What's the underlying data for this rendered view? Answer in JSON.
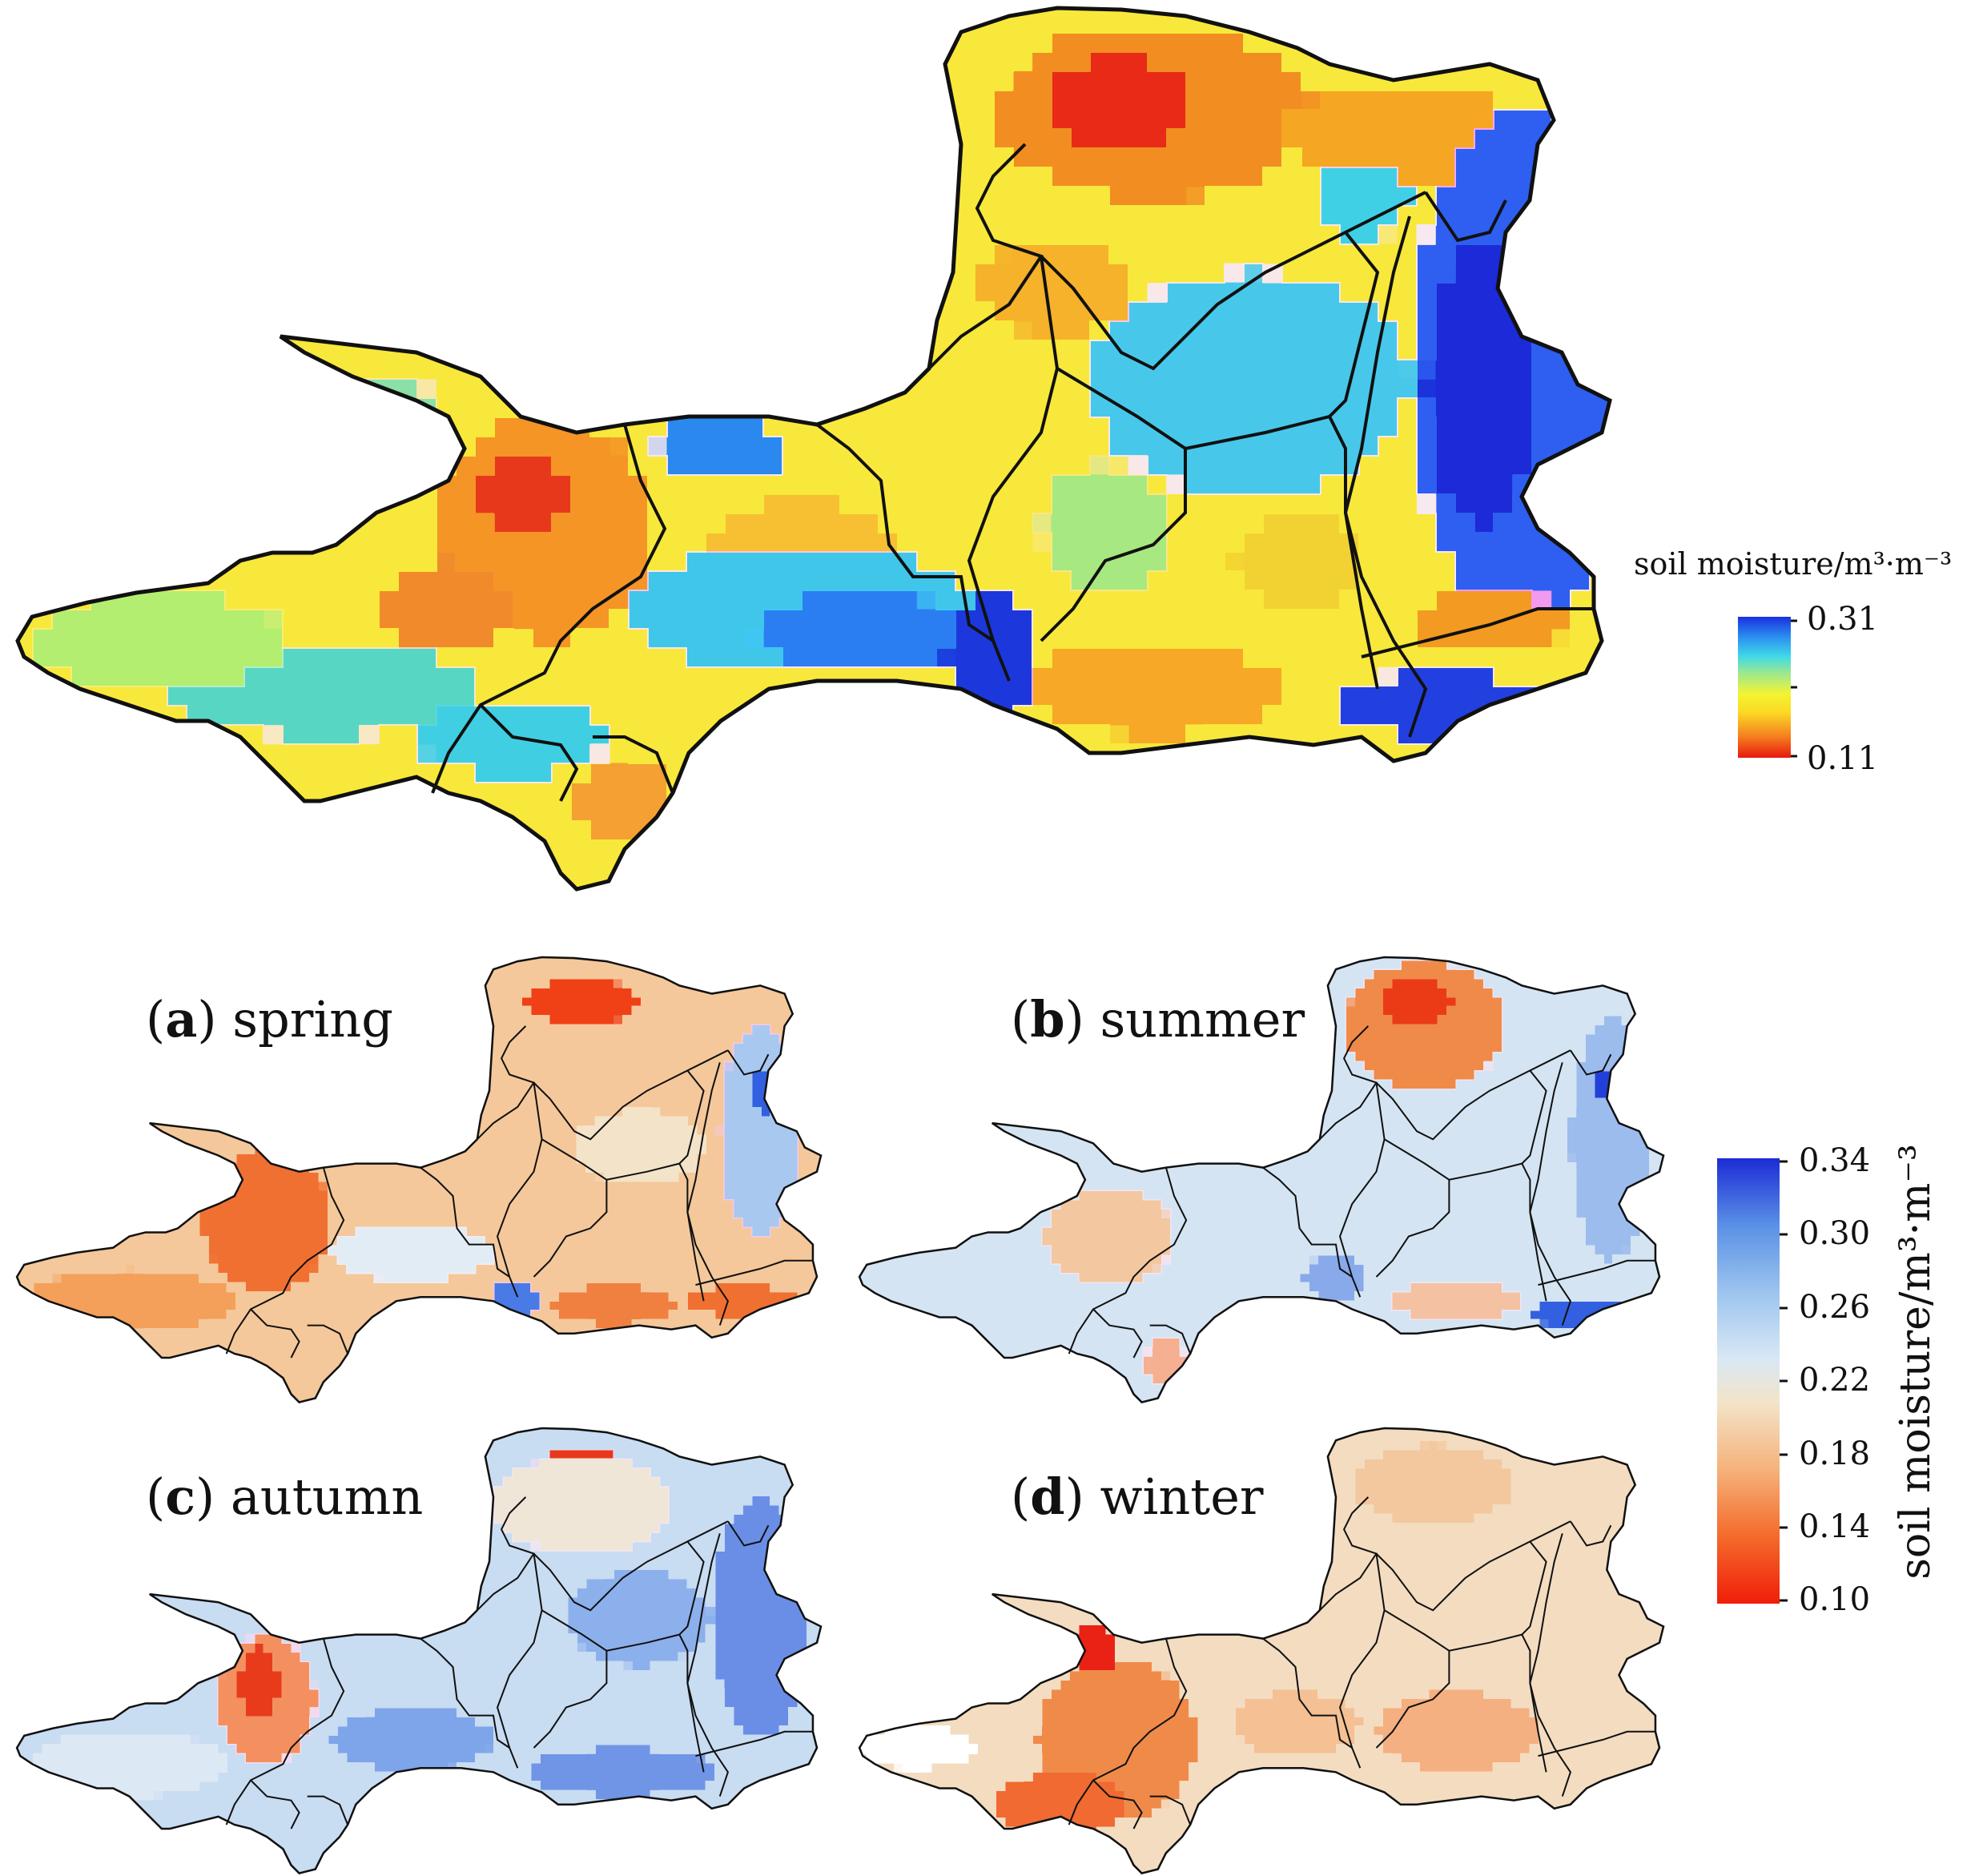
{
  "top_map": {
    "legend_title": "soil moisture/m³·m⁻³",
    "legend_max": "0.31",
    "legend_min": "0.11",
    "colormap": [
      "#e8190e",
      "#f57f20",
      "#fbd824",
      "#f4f432",
      "#9de88f",
      "#3fd9e8",
      "#2a8df0",
      "#1a2fe0"
    ]
  },
  "seasonal_maps": {
    "panels": [
      {
        "letter": "a",
        "season": "spring"
      },
      {
        "letter": "b",
        "season": "summer"
      },
      {
        "letter": "c",
        "season": "autumn"
      },
      {
        "letter": "d",
        "season": "winter"
      }
    ],
    "legend_title": "soil moisture/m³·m⁻³",
    "legend_ticks": [
      "0.34",
      "0.30",
      "0.26",
      "0.22",
      "0.18",
      "0.14",
      "0.10"
    ],
    "colormap": [
      "#f01e0a",
      "#f46a2a",
      "#f5b27a",
      "#f3e3c8",
      "#d8e8f4",
      "#9cc4ef",
      "#5a90e6",
      "#1c2cd6"
    ]
  }
}
